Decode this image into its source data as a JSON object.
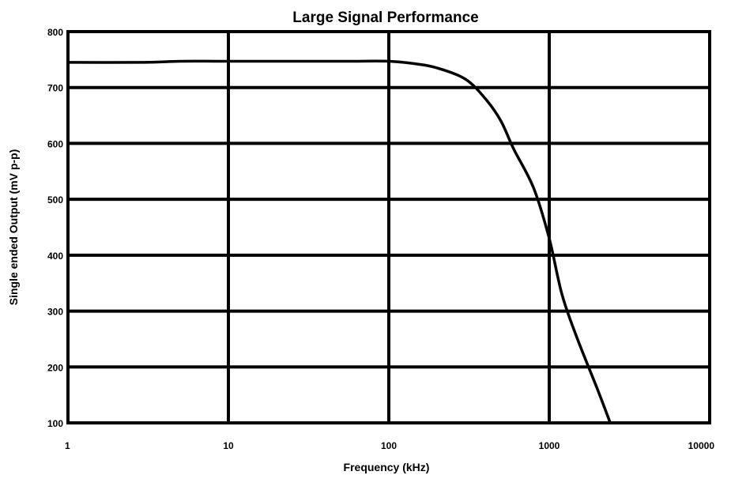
{
  "chart_data": {
    "type": "line",
    "title": "Large Signal Performance",
    "xlabel": "Frequency (kHz)",
    "ylabel": "Single ended Output (mV p-p)",
    "x_scale": "log",
    "xlim": [
      1,
      10000
    ],
    "ylim": [
      100,
      800
    ],
    "x_ticks": [
      1,
      10,
      100,
      1000,
      10000
    ],
    "x_tick_labels": [
      "1",
      "10",
      "100",
      "1000",
      "10000"
    ],
    "y_ticks": [
      100,
      200,
      300,
      400,
      500,
      600,
      700,
      800
    ],
    "y_tick_labels": [
      "100",
      "200",
      "300",
      "400",
      "500",
      "600",
      "700",
      "800"
    ],
    "grid": true,
    "series": [
      {
        "x": [
          1,
          3,
          5,
          10,
          50,
          100,
          150,
          200,
          300,
          400,
          500,
          600,
          800,
          1000,
          1200,
          1500,
          2000,
          2400
        ],
        "y": [
          745,
          745,
          747,
          747,
          747,
          747,
          742,
          735,
          715,
          680,
          640,
          590,
          520,
          430,
          330,
          250,
          160,
          100
        ]
      }
    ]
  }
}
